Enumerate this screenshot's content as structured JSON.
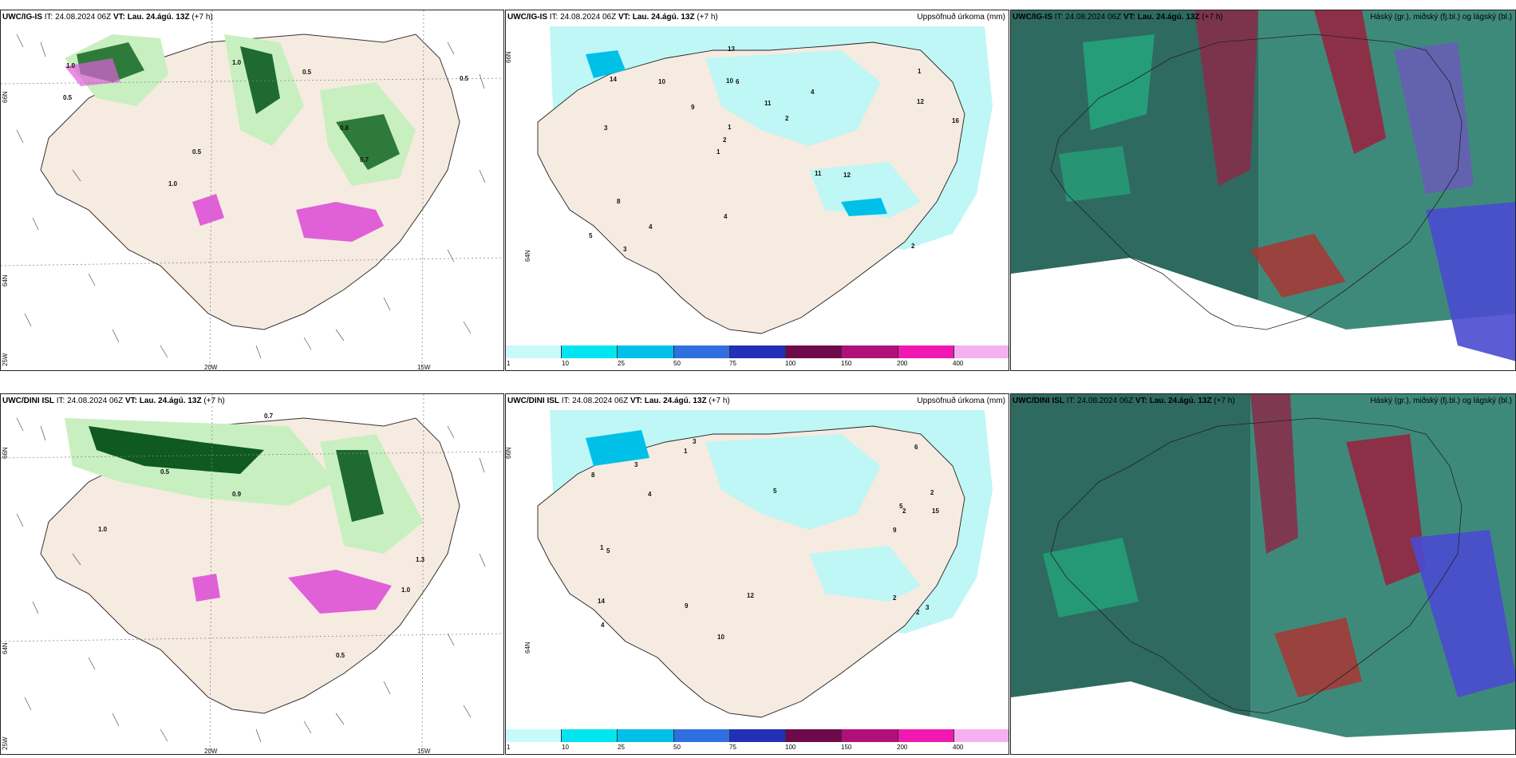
{
  "panels": [
    {
      "model": "UWC/IG-IS",
      "it": "24.08.2024 06Z",
      "vt": "Lau. 24.ágú. 13Z",
      "lead": "(+7 h)",
      "right_title": ""
    },
    {
      "model": "UWC/IG-IS",
      "it": "24.08.2024 06Z",
      "vt": "Lau. 24.ágú. 13Z",
      "lead": "(+7 h)",
      "right_title": "Uppsöfnuð úrkoma (mm)"
    },
    {
      "model": "UWC/IG-IS",
      "it": "24.08.2024 06Z",
      "vt": "Lau. 24.ágú. 13Z",
      "lead": "(+7 h)",
      "right_title": "Háský (gr.), miðský (fj.bl.) og lágský (bl.)"
    },
    {
      "model": "UWC/DINI ISL",
      "it": "24.08.2024 06Z",
      "vt": "Lau. 24.ágú. 13Z",
      "lead": "(+7 h)",
      "right_title": ""
    },
    {
      "model": "UWC/DINI ISL",
      "it": "24.08.2024 06Z",
      "vt": "Lau. 24.ágú. 13Z",
      "lead": "(+7 h)",
      "right_title": "Uppsöfnuð úrkoma (mm)"
    },
    {
      "model": "UWC/DINI ISL",
      "it": "24.08.2024 06Z",
      "vt": "Lau. 24.ágú. 13Z",
      "lead": "(+7 h)",
      "right_title": "Háský (gr.), miðský (fj.bl.) og lágský (bl.)"
    }
  ],
  "labels": {
    "it": "IT:",
    "vt": "VT:"
  },
  "axis_labels": {
    "lat_66": "66N",
    "lat_64": "64N",
    "lon_25": "25W",
    "lon_20": "20W",
    "lon_15": "15W"
  },
  "colorbar": {
    "ticks": [
      "1",
      "10",
      "25",
      "50",
      "75",
      "100",
      "150",
      "200",
      "400"
    ],
    "colors": [
      "#c8fafa",
      "#00e6f0",
      "#00c0e8",
      "#2f6fe0",
      "#2230b8",
      "#6e0a4a",
      "#b0107a",
      "#f018b0",
      "#f4b0f0"
    ]
  },
  "colors": {
    "land": "#f6ebe0",
    "rain_light": "#bff6f6",
    "green_light": "#c8efc0",
    "green_dark": "#0e5a20",
    "magenta": "#e060d8",
    "cloud_dark": "#2e6a60"
  },
  "precip_values_top": [
    "2",
    "3",
    "1",
    "1",
    "4",
    "3",
    "10",
    "11",
    "8",
    "9",
    "5",
    "4",
    "6",
    "2",
    "12",
    "14",
    "13",
    "16",
    "11",
    "12",
    "2",
    "4",
    "1",
    "10"
  ],
  "precip_values_bottom": [
    "2",
    "2",
    "3",
    "5",
    "4",
    "3",
    "5",
    "9",
    "6",
    "4",
    "15",
    "8",
    "9",
    "10",
    "14",
    "3",
    "2",
    "1",
    "12",
    "2",
    "1",
    "5"
  ]
}
